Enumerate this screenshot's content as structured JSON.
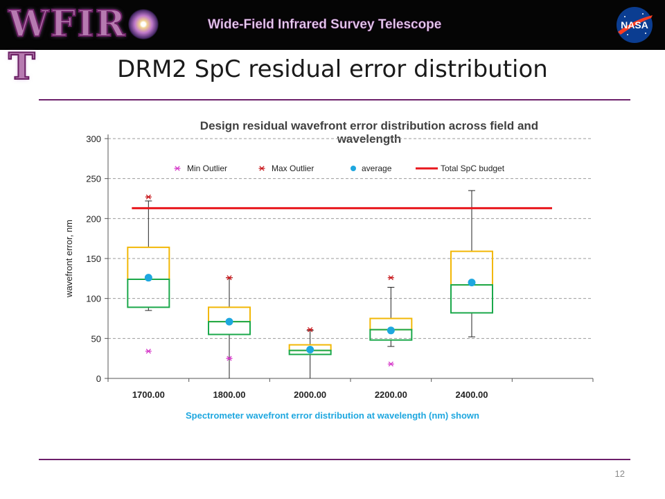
{
  "header": {
    "logo_text": "WFIRST",
    "banner": "Wide-Field Infrared Survey Telescope",
    "agency_logo_text": "NASA"
  },
  "slide": {
    "title": "DRM2 SpC residual error distribution",
    "page_number": "12"
  },
  "colors": {
    "upper_box": "#f2b705",
    "lower_box": "#1aa84a",
    "average": "#1ea7df",
    "budget": "#e8161c",
    "min_outlier": "#d63bc9",
    "max_outlier": "#c8181c",
    "rule": "#6c1f6a"
  },
  "chart_data": {
    "type": "box",
    "title_lines": [
      "Design residual wavefront error distribution across field and",
      "wavelength"
    ],
    "ylabel": "wavefront error, nm",
    "xlabel": "Spectrometer wavefront error distribution at wavelength (nm) shown",
    "ylim": [
      0,
      300
    ],
    "yticks": [
      0,
      50,
      100,
      150,
      200,
      250,
      300
    ],
    "grid": true,
    "legend_position": "top",
    "legend": [
      "Min Outlier",
      "Max Outlier",
      "average",
      "Total SpC budget"
    ],
    "categories": [
      "1700.00",
      "1800.00",
      "2000.00",
      "2200.00",
      "2400.00"
    ],
    "boxes": [
      {
        "whisker_low": 85,
        "q1": 89,
        "median": 124,
        "q3": 164,
        "whisker_high": 222,
        "average": 126,
        "min_outlier": 34,
        "max_outlier": 227
      },
      {
        "whisker_low": 0,
        "q1": 55,
        "median": 71,
        "q3": 89,
        "whisker_high": 126,
        "average": 71,
        "min_outlier": 25,
        "max_outlier": 126
      },
      {
        "whisker_low": 0,
        "q1": 30,
        "median": 35,
        "q3": 42,
        "whisker_high": 60,
        "average": 36,
        "min_outlier": null,
        "max_outlier": 61
      },
      {
        "whisker_low": 40,
        "q1": 48,
        "median": 61,
        "q3": 75,
        "whisker_high": 114,
        "average": 60,
        "min_outlier": 18,
        "max_outlier": 126
      },
      {
        "whisker_low": 52,
        "q1": 82,
        "median": 117,
        "q3": 159,
        "whisker_high": 235,
        "average": 120,
        "min_outlier": null,
        "max_outlier": null
      }
    ],
    "budget": 213
  }
}
